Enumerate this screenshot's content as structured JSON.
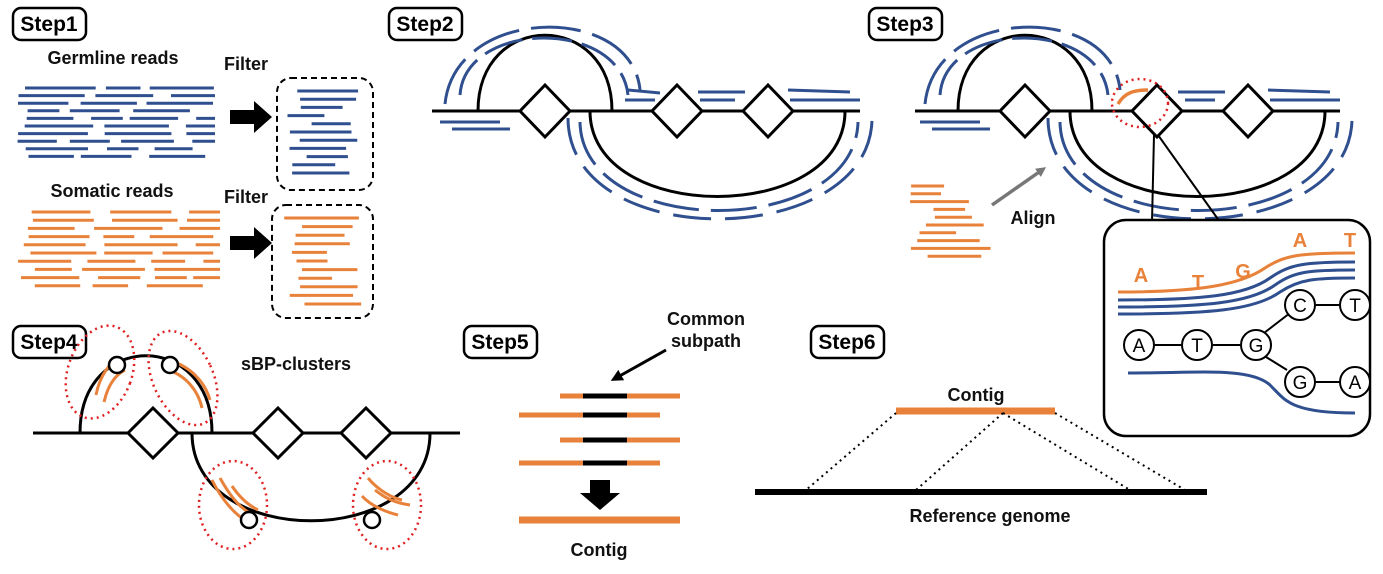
{
  "steps": {
    "step1": "Step1",
    "step2": "Step2",
    "step3": "Step3",
    "step4": "Step4",
    "step5": "Step5",
    "step6": "Step6"
  },
  "step1": {
    "germline_label": "Germline reads",
    "somatic_label": "Somatic reads",
    "filter_top": "Filter",
    "filter_bottom": "Filter"
  },
  "step3": {
    "align_label": "Align",
    "zoom_read_letters": [
      "A",
      "T",
      "G",
      "A",
      "T"
    ],
    "graph_nodes": [
      "A",
      "T",
      "G",
      "C",
      "T",
      "G",
      "A"
    ]
  },
  "step4": {
    "cluster_label": "sBP-clusters"
  },
  "step5": {
    "common_label_line1": "Common",
    "common_label_line2": "subpath",
    "contig_label": "Contig"
  },
  "step6": {
    "contig_label": "Contig",
    "reference_label": "Reference genome"
  },
  "colors": {
    "germline": "#2f4f8f",
    "somatic": "#e8823a",
    "cluster_outline": "#e02020",
    "arrow_gray": "#777777",
    "black": "#000000"
  }
}
